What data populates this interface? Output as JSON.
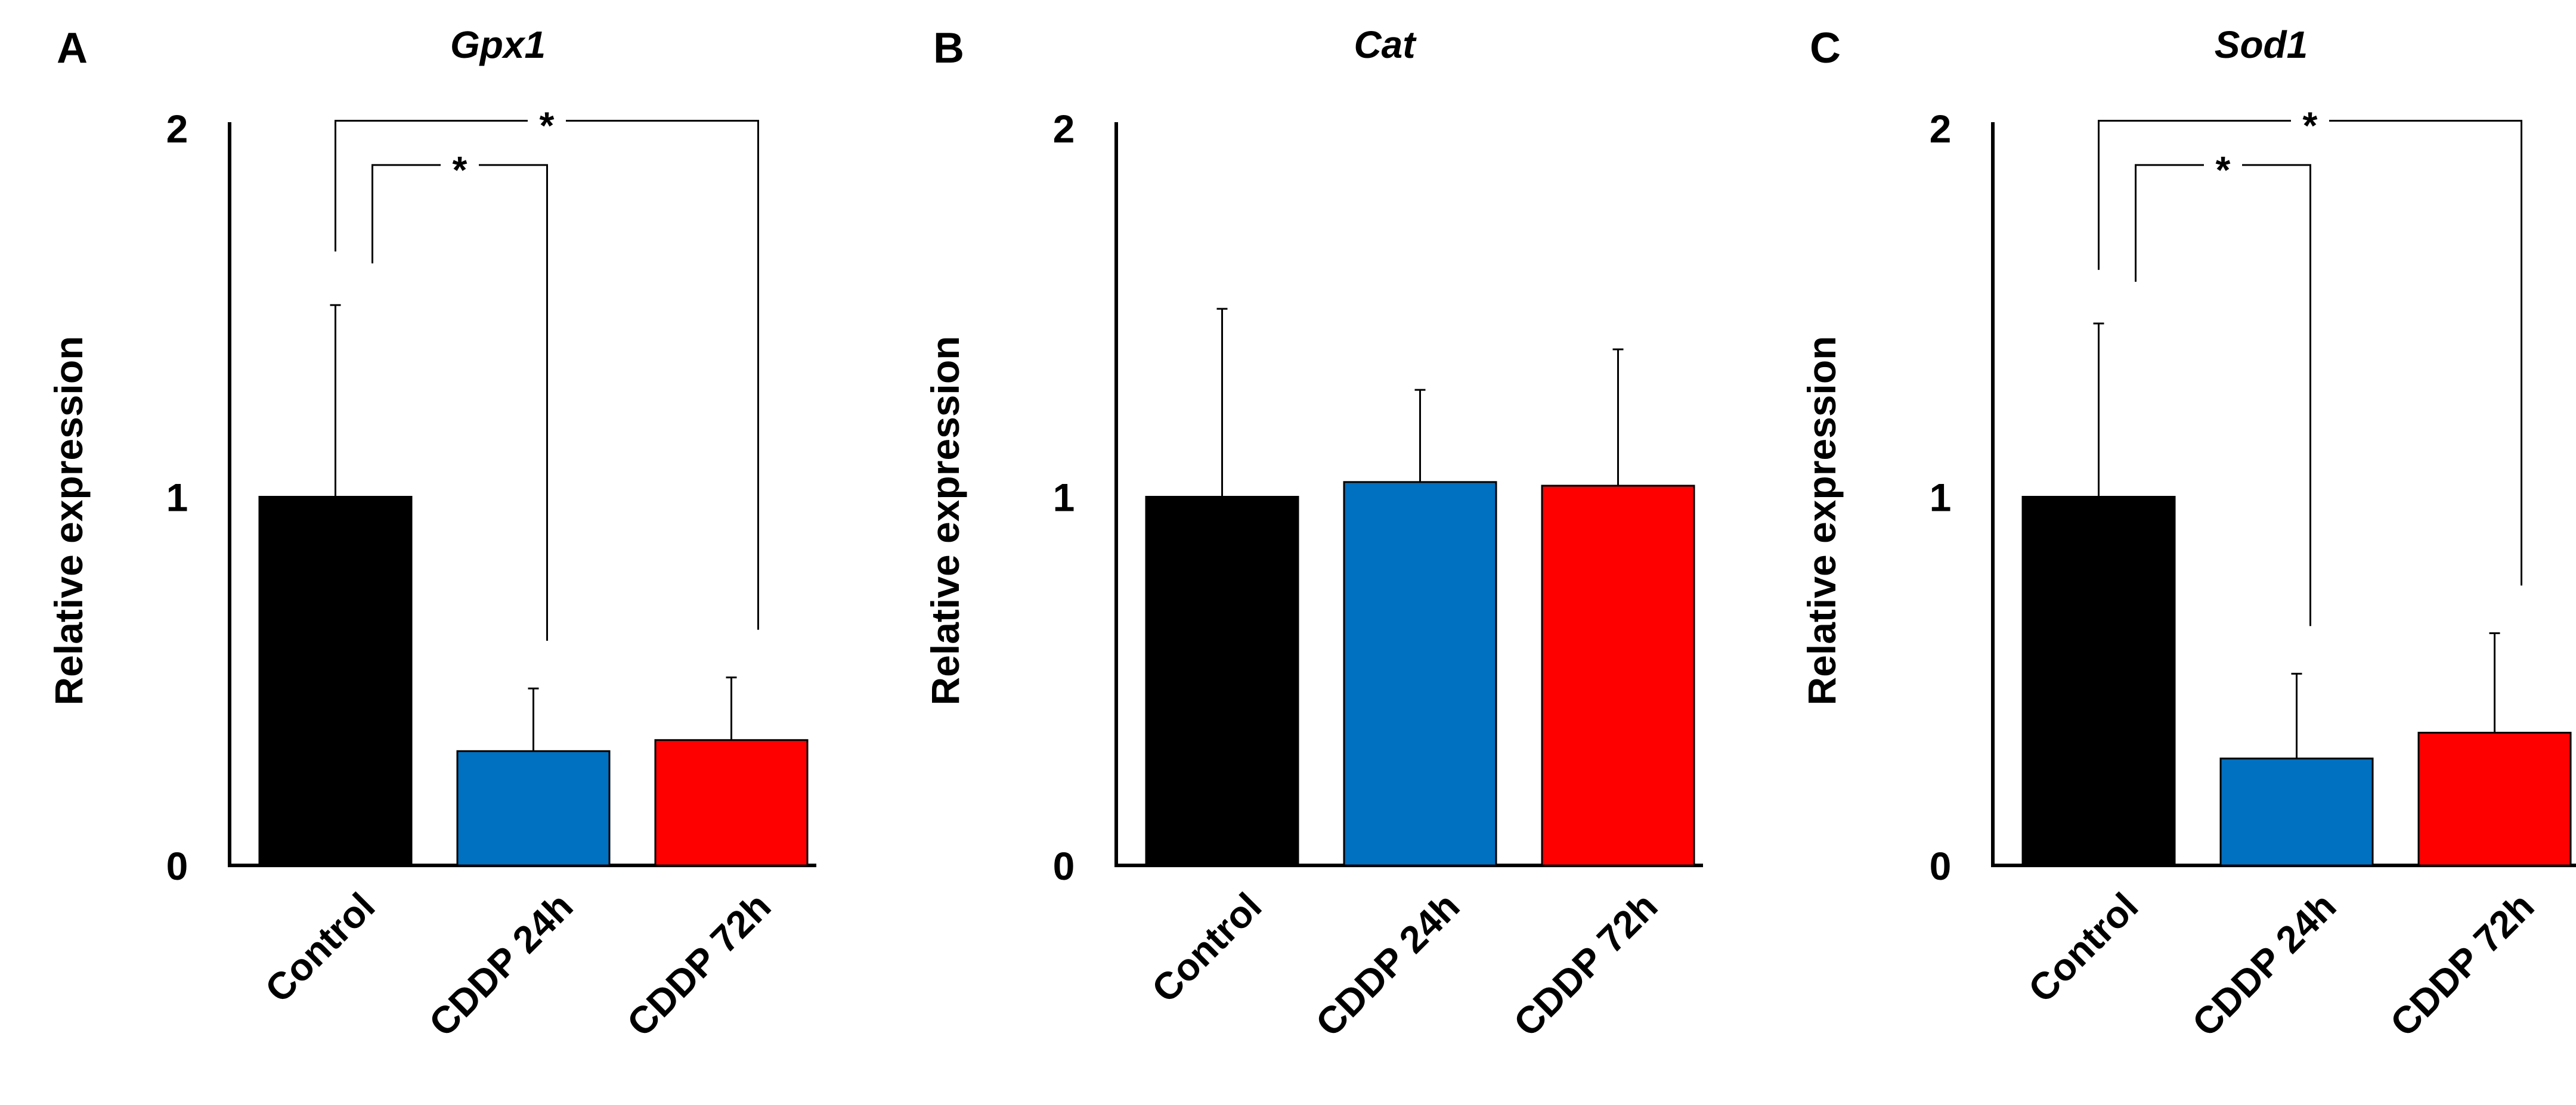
{
  "chart_data": [
    {
      "type": "bar",
      "panel_label": "A",
      "title": "Gpx1",
      "ylabel": "Relative expression",
      "xlabel": "",
      "ylim": [
        0,
        2
      ],
      "yticks": [
        0,
        1,
        2
      ],
      "categories": [
        "Control",
        "CDDP 24h",
        "CDDP 72h"
      ],
      "values": [
        1.0,
        0.31,
        0.34
      ],
      "errors": [
        0.52,
        0.17,
        0.17
      ],
      "colors": [
        "#000000",
        "#0070c0",
        "#ff0000"
      ],
      "significance": [
        {
          "from": 0,
          "to": 1,
          "label": "*",
          "level": 1.9
        },
        {
          "from": 0,
          "to": 2,
          "label": "*",
          "level": 2.02
        }
      ]
    },
    {
      "type": "bar",
      "panel_label": "B",
      "title": "Cat",
      "ylabel": "Relative expression",
      "xlabel": "",
      "ylim": [
        0,
        2
      ],
      "yticks": [
        0,
        1,
        2
      ],
      "categories": [
        "Control",
        "CDDP 24h",
        "CDDP 72h"
      ],
      "values": [
        1.0,
        1.04,
        1.03
      ],
      "errors": [
        0.51,
        0.25,
        0.37
      ],
      "colors": [
        "#000000",
        "#0070c0",
        "#ff0000"
      ],
      "significance": []
    },
    {
      "type": "bar",
      "panel_label": "C",
      "title": "Sod1",
      "ylabel": "Relative expression",
      "xlabel": "",
      "ylim": [
        0,
        2
      ],
      "yticks": [
        0,
        1,
        2
      ],
      "categories": [
        "Control",
        "CDDP 24h",
        "CDDP 72h"
      ],
      "values": [
        1.0,
        0.29,
        0.36
      ],
      "errors": [
        0.47,
        0.23,
        0.27
      ],
      "colors": [
        "#000000",
        "#0070c0",
        "#ff0000"
      ],
      "significance": [
        {
          "from": 0,
          "to": 1,
          "label": "*",
          "level": 1.9
        },
        {
          "from": 0,
          "to": 2,
          "label": "*",
          "level": 2.02
        }
      ]
    }
  ]
}
